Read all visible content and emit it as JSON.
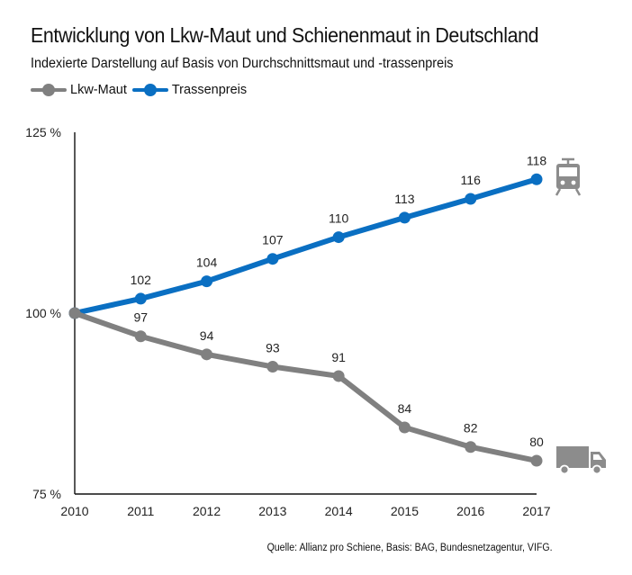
{
  "header": {
    "title": "Entwicklung von Lkw-Maut und Schienenmaut in Deutschland",
    "subtitle": "Indexierte Darstellung auf Basis von Durchschnittsmaut und -trassenpreis"
  },
  "legend": {
    "items": [
      {
        "label": "Lkw-Maut",
        "color": "#808080"
      },
      {
        "label": "Trassenpreis",
        "color": "#0a6fc2"
      }
    ]
  },
  "source": "Quelle: Allianz pro Schiene, Basis: BAG, Bundesnetzagentur, VIFG.",
  "icons": {
    "rail": "train-icon",
    "road": "truck-icon"
  },
  "chart_data": {
    "type": "line",
    "x": [
      "2010",
      "2011",
      "2012",
      "2013",
      "2014",
      "2015",
      "2016",
      "2017"
    ],
    "ylim": [
      75,
      125
    ],
    "y_ticks": [
      {
        "value": 125,
        "label": "125 %"
      },
      {
        "value": 100,
        "label": "100 %"
      },
      {
        "value": 75,
        "label": "75 %"
      }
    ],
    "grid": false,
    "series": [
      {
        "name": "Trassenpreis",
        "color": "#0a6fc2",
        "values": [
          100,
          102.0,
          104.4,
          107.5,
          110.5,
          113.2,
          115.8,
          118.5
        ],
        "labels": [
          "",
          "102",
          "104",
          "107",
          "110",
          "113",
          "116",
          "118"
        ]
      },
      {
        "name": "Lkw-Maut",
        "color": "#808080",
        "values": [
          100,
          96.8,
          94.3,
          92.6,
          91.3,
          84.2,
          81.5,
          79.6
        ],
        "labels": [
          "",
          "97",
          "94",
          "93",
          "91",
          "84",
          "82",
          "80"
        ]
      }
    ]
  }
}
